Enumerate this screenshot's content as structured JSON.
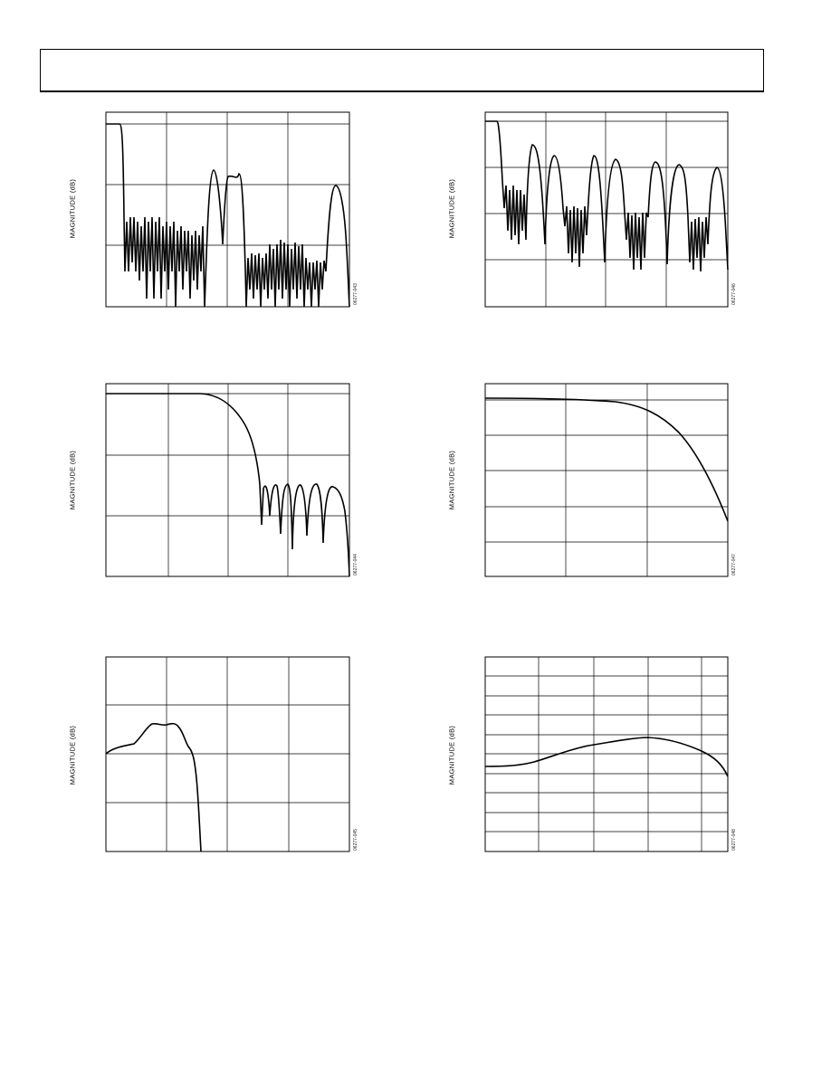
{
  "page": {
    "header": ""
  },
  "chart_data": [
    {
      "type": "line",
      "ylabel": "MAGNITUDE (dB)",
      "figure_id": "06277-043",
      "grid": true,
      "x_divisions": 4,
      "y_divisions": 3,
      "xlim": [
        0,
        1
      ],
      "ylim": [
        -135,
        10
      ],
      "series": [
        {
          "x": [
            0.0,
            0.06,
            0.07,
            0.075,
            0.08,
            0.2,
            0.21,
            0.245,
            0.25,
            0.262,
            0.275,
            0.305,
            0.315,
            0.37,
            0.375,
            0.38,
            0.42,
            0.44,
            0.455,
            0.47,
            0.49,
            0.52,
            0.54,
            0.56,
            0.58,
            0.6,
            0.63,
            0.66,
            0.69,
            0.71,
            0.78,
            0.82,
            0.86,
            0.9,
            0.94,
            0.97,
            1.0
          ],
          "values": [
            0,
            0,
            -40,
            -135,
            -75,
            -80,
            -135,
            -78,
            -135,
            -82,
            -135,
            -135,
            -85,
            -125,
            -135,
            -100,
            -35,
            -52,
            -135,
            -50,
            -42,
            -135,
            -125,
            -90,
            -135,
            -95,
            -95,
            -135,
            -100,
            -135,
            -100,
            -135,
            -125,
            -135,
            -45,
            -60,
            -135
          ]
        }
      ]
    },
    {
      "type": "line",
      "ylabel": "MAGNITUDE (dB)",
      "figure_id": "06277-046",
      "grid": true,
      "x_divisions": 4,
      "y_divisions": 4,
      "xlim": [
        0,
        1
      ],
      "ylim": [
        -120,
        5
      ],
      "series": [
        {
          "x": [
            0.0,
            0.05,
            0.07,
            0.1,
            0.14,
            0.18,
            0.2,
            0.25,
            0.32,
            0.38,
            0.42,
            0.5,
            0.56,
            0.6,
            0.68,
            0.75,
            0.8,
            0.9,
            1.0
          ],
          "values": [
            0,
            0,
            -40,
            -70,
            -80,
            -25,
            -90,
            -60,
            -85,
            -35,
            -90,
            -60,
            -88,
            -40,
            -90,
            -65,
            -85,
            -40,
            -95
          ]
        }
      ]
    },
    {
      "type": "line",
      "ylabel": "MAGNITUDE (dB)",
      "figure_id": "06277-044",
      "grid": true,
      "x_divisions": 4,
      "y_divisions": 3,
      "xlim": [
        0,
        1
      ],
      "ylim": [
        -130,
        5
      ],
      "series": [
        {
          "x": [
            0.0,
            0.4,
            0.45,
            0.5,
            0.55,
            0.6,
            0.63,
            0.65,
            0.7,
            0.75,
            0.8,
            0.85,
            0.9,
            0.95,
            1.0
          ],
          "values": [
            0,
            0,
            -1,
            -6,
            -22,
            -55,
            -65,
            -80,
            -65,
            -90,
            -65,
            -92,
            -65,
            -95,
            -130
          ]
        }
      ]
    },
    {
      "type": "line",
      "ylabel": "MAGNITUDE (dB)",
      "figure_id": "06277-047",
      "grid": true,
      "x_divisions": 3,
      "y_divisions": 5,
      "xlim": [
        0,
        1
      ],
      "ylim": [
        -10,
        0.5
      ],
      "series": [
        {
          "x": [
            0.0,
            0.2,
            0.4,
            0.55,
            0.65,
            0.72,
            0.8,
            0.9,
            1.0
          ],
          "values": [
            0,
            -0.05,
            -0.15,
            -0.35,
            -0.8,
            -1.5,
            -2.8,
            -5.0,
            -7.0
          ]
        }
      ]
    },
    {
      "type": "line",
      "ylabel": "MAGNITUDE (dB)",
      "figure_id": "06277-045",
      "grid": true,
      "x_divisions": 4,
      "y_divisions": 4,
      "xlim": [
        0,
        1
      ],
      "ylim": [
        -8,
        0
      ],
      "series": [
        {
          "x": [
            0.0,
            0.06,
            0.12,
            0.18,
            0.2,
            0.25,
            0.27,
            0.3,
            0.32,
            0.35,
            0.37,
            0.39
          ],
          "values": [
            -4.0,
            -3.7,
            -3.4,
            -2.7,
            -2.5,
            -2.6,
            -2.5,
            -2.7,
            -3.0,
            -3.6,
            -5.0,
            -8.0
          ]
        }
      ]
    },
    {
      "type": "line",
      "ylabel": "MAGNITUDE (dB)",
      "figure_id": "06277-048",
      "grid": true,
      "x_divisions": 5,
      "y_divisions": 10,
      "xlim": [
        0,
        1
      ],
      "ylim": [
        -10,
        0
      ],
      "series": [
        {
          "x": [
            0.0,
            0.1,
            0.2,
            0.3,
            0.4,
            0.5,
            0.6,
            0.68,
            0.75,
            0.85,
            0.92,
            0.97,
            1.0
          ],
          "values": [
            -5.0,
            -4.9,
            -4.5,
            -4.0,
            -3.5,
            -3.1,
            -2.8,
            -2.6,
            -2.7,
            -3.2,
            -3.8,
            -4.5,
            -5.4
          ]
        }
      ]
    }
  ]
}
